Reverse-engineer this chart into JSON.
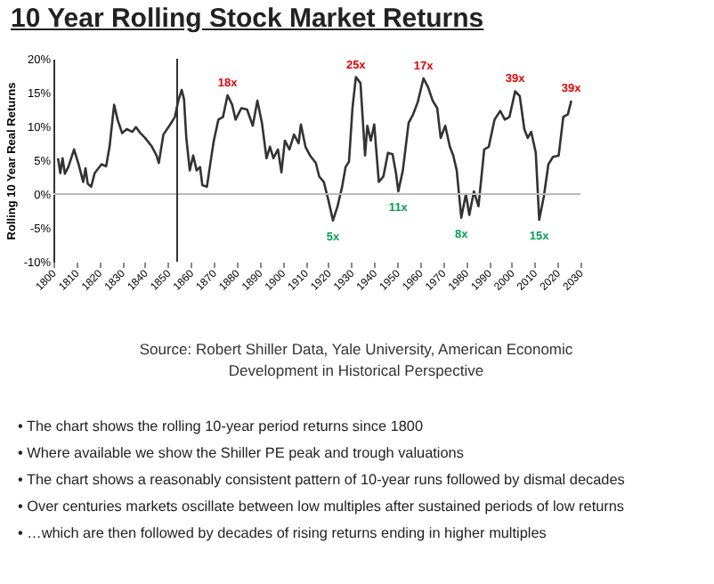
{
  "chart_data": {
    "type": "line",
    "title": "10 Year Rolling Stock Market Returns",
    "ylabel": "Rolling 10 Year Real Returns",
    "x": [
      1802,
      1803,
      1804,
      1805,
      1806.5,
      1809,
      1811,
      1813,
      1814,
      1815,
      1816.5,
      1818,
      1821,
      1823,
      1824.5,
      1826.5,
      1828,
      1830,
      1832,
      1834.5,
      1836,
      1838,
      1840,
      1843,
      1845,
      1846,
      1848,
      1851,
      1853,
      1854.5,
      1856,
      1857,
      1858,
      1859.5,
      1861,
      1862.5,
      1864,
      1865,
      1867,
      1869,
      1870,
      1872,
      1874,
      1876,
      1878,
      1879.5,
      1882,
      1884.5,
      1887,
      1889,
      1891,
      1893,
      1894.5,
      1896,
      1898,
      1899.5,
      1901,
      1903,
      1905,
      1907,
      1908,
      1910,
      1912,
      1914.5,
      1916,
      1918,
      1920,
      1922,
      1924,
      1926,
      1927.5,
      1929,
      1930.5,
      1932,
      1934,
      1936,
      1937,
      1938.5,
      1940,
      1942,
      1944,
      1946,
      1948,
      1949.5,
      1950.5,
      1952.5,
      1955,
      1957,
      1959,
      1961.5,
      1963.5,
      1965.5,
      1967.5,
      1969,
      1971,
      1973,
      1974.5,
      1976,
      1978,
      1980,
      1981.5,
      1983.5,
      1985.5,
      1988,
      1990,
      1992.5,
      1995,
      1997,
      1999,
      2001.5,
      2003.5,
      2005.5,
      2007,
      2008.5,
      2010.5,
      2012,
      2014,
      2016,
      2018,
      2020.5,
      2022.5,
      2024.5,
      2026
    ],
    "series": [
      {
        "color": "#333333",
        "values": [
          5.3,
          3.1,
          5.3,
          3,
          4,
          6.6,
          4.4,
          1.8,
          3.8,
          1.5,
          1.1,
          3.1,
          4.4,
          4.1,
          7,
          13.2,
          11,
          9,
          9.6,
          9.2,
          9.9,
          9,
          8.3,
          7,
          5.7,
          4.6,
          8.8,
          10.3,
          11.4,
          13.8,
          15.4,
          14,
          8.3,
          3.5,
          5.7,
          3.5,
          4,
          1.3,
          1.1,
          5.7,
          7.9,
          11,
          11.4,
          14.6,
          13.2,
          11,
          12.7,
          12.5,
          10.1,
          13.8,
          10.5,
          5.3,
          7,
          5.3,
          6.6,
          3.2,
          7.9,
          6.6,
          8.8,
          7.5,
          10.3,
          7,
          5.7,
          4.6,
          2.6,
          1.8,
          -0.9,
          -3.9,
          -1.8,
          1.1,
          4,
          4.8,
          12.7,
          17.3,
          16.4,
          5.7,
          10.1,
          7.9,
          10.3,
          1.8,
          2.6,
          6.1,
          5.9,
          3.1,
          0.4,
          3.5,
          10.5,
          11.8,
          13.6,
          17.1,
          15.8,
          13.8,
          12.7,
          8.3,
          10.1,
          7,
          5.7,
          3.5,
          -3.5,
          0,
          -3.1,
          0.4,
          -1.8,
          6.6,
          7,
          11,
          12.3,
          11,
          11.4,
          15.2,
          14.5,
          9.6,
          8.3,
          9.2,
          6.1,
          -3.8,
          -0.4,
          4.4,
          5.5,
          5.7,
          11.4,
          11.8,
          13.8
        ]
      }
    ],
    "xlim": [
      1800,
      2030
    ],
    "xticks": [
      1800,
      1810,
      1820,
      1830,
      1840,
      1850,
      1860,
      1870,
      1880,
      1890,
      1900,
      1910,
      1920,
      1930,
      1940,
      1950,
      1960,
      1970,
      1980,
      1990,
      2000,
      2010,
      2020,
      2030
    ],
    "ylim": [
      -10,
      20
    ],
    "yticks": [
      {
        "value": -10,
        "label": "-10%"
      },
      {
        "value": -5,
        "label": "-5%"
      },
      {
        "value": 0,
        "label": "0%"
      },
      {
        "value": 5,
        "label": "5%"
      },
      {
        "value": 10,
        "label": "10%"
      },
      {
        "value": 15,
        "label": "15%"
      },
      {
        "value": 20,
        "label": "20%"
      }
    ],
    "ref_lines": [
      {
        "axis": "y",
        "value": 0,
        "color": "#bbbbbb"
      },
      {
        "axis": "x",
        "value": 1854,
        "color": "#333333"
      }
    ],
    "annotations": [
      {
        "text": "18x",
        "x": 1876,
        "y": 14.6
      },
      {
        "text": "25x",
        "x": 1932,
        "y": 17.3
      },
      {
        "text": "17x",
        "x": 1961.5,
        "y": 17.1
      },
      {
        "text": "39x",
        "x": 2001.5,
        "y": 15.2
      },
      {
        "text": "39x",
        "x": 2026,
        "y": 13.8
      },
      {
        "text": "5x",
        "x": 1922,
        "y": -3.9
      },
      {
        "text": "11x",
        "x": 1950.5,
        "y": 0.4
      },
      {
        "text": "8x",
        "x": 1978,
        "y": -3.5
      },
      {
        "text": "15x",
        "x": 2012,
        "y": -3.8
      },
      "Source: Robert Shiller Data, Yale University, American Economic Development in Historical Perspective",
      "• The chart shows the rolling 10-year period returns since 1800",
      "• Where available we show the Shiller PE peak and trough valuations",
      "• The chart shows a reasonably consistent pattern of 10-year runs followed by dismal decades",
      "• Over centuries markets oscillate between low multiples after sustained periods of low returns",
      "• …which are then followed by decades of rising returns ending in higher multiples"
    ]
  }
}
